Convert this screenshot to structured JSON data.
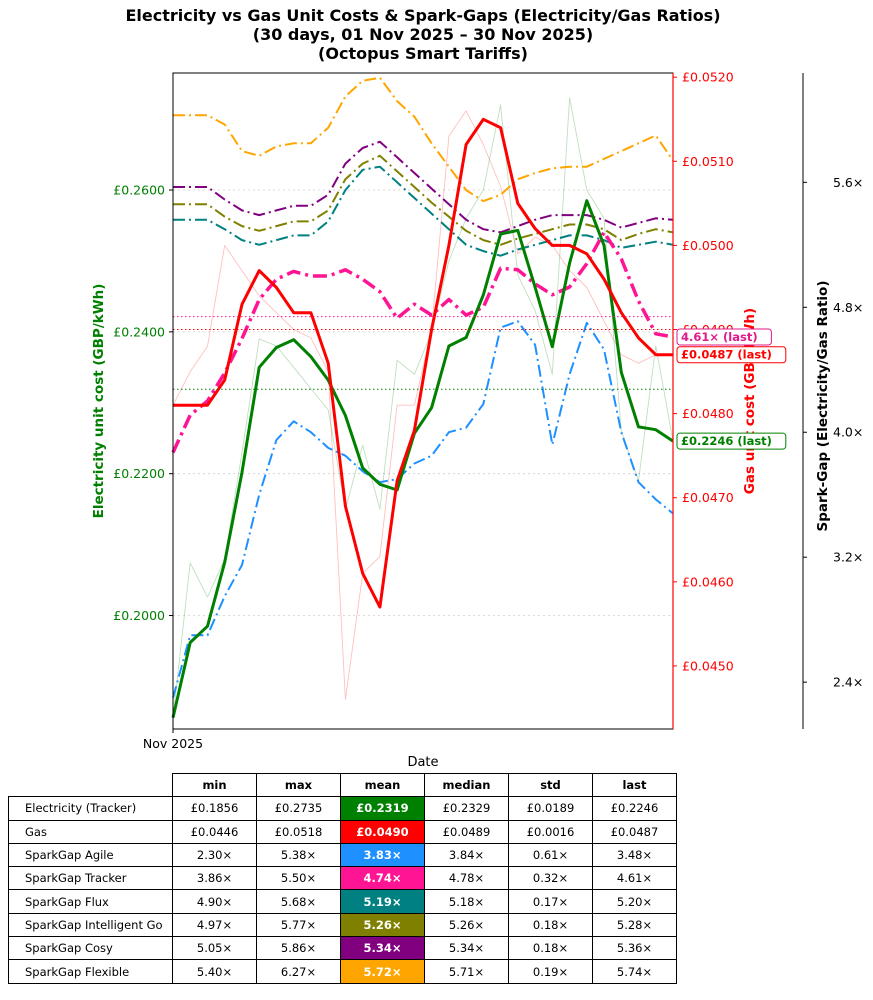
{
  "title": {
    "line1": "Electricity vs Gas Unit Costs & Spark-Gaps (Electricity/Gas Ratios)",
    "line2": "(30 days, 01 Nov 2025 – 30 Nov 2025)",
    "line3": "(Octopus Smart Tariffs)"
  },
  "chart_data": {
    "type": "line",
    "xlabel": "Date",
    "x_tick_label": "Nov 2025",
    "days": 30,
    "axes": {
      "left": {
        "label": "Electricity unit cost (GBP/kWh)",
        "ylim": [
          0.184,
          0.2765
        ],
        "ticks": [
          "£0.2000",
          "£0.2200",
          "£0.2400",
          "£0.2600"
        ],
        "tick_values": [
          0.2,
          0.22,
          0.24,
          0.26
        ],
        "color": "#008000"
      },
      "right": {
        "label": "Gas unit cost (GBP/kWh)",
        "ylim": [
          0.04425,
          0.05205
        ],
        "ticks": [
          "£0.0450",
          "£0.0460",
          "£0.0470",
          "£0.0480",
          "£0.0490",
          "£0.0500",
          "£0.0510",
          "£0.0520"
        ],
        "tick_values": [
          0.045,
          0.046,
          0.047,
          0.048,
          0.049,
          0.05,
          0.051,
          0.052
        ],
        "color": "#ff0000"
      },
      "far_right": {
        "label": "Spark-Gap (Electricity/Gas Ratio)",
        "ylim": [
          2.1,
          6.3
        ],
        "ticks": [
          "2.4×",
          "3.2×",
          "4.0×",
          "4.8×",
          "5.6×"
        ],
        "tick_values": [
          2.4,
          3.2,
          4.0,
          4.8,
          5.6
        ]
      }
    },
    "series": [
      {
        "name": "Electricity (Tracker) raw",
        "axis": "left",
        "color": "#008000",
        "style": "thin",
        "values": [
          0.1856,
          0.2074,
          0.2026,
          0.208,
          0.223,
          0.239,
          0.238,
          0.235,
          0.232,
          0.229,
          0.215,
          0.224,
          0.215,
          0.236,
          0.234,
          0.24,
          0.25,
          0.256,
          0.26,
          0.272,
          0.248,
          0.243,
          0.234,
          0.273,
          0.26,
          0.256,
          0.226,
          0.219,
          0.238,
          0.2246
        ]
      },
      {
        "name": "Electricity (Tracker) smoothed",
        "axis": "left",
        "color": "#008000",
        "style": "solid",
        "values": [
          0.1856,
          0.1962,
          0.1985,
          0.2075,
          0.2202,
          0.235,
          0.2378,
          0.2389,
          0.2365,
          0.2332,
          0.2282,
          0.2208,
          0.2185,
          0.2177,
          0.2257,
          0.2293,
          0.238,
          0.2392,
          0.2452,
          0.2538,
          0.2543,
          0.2463,
          0.2379,
          0.2497,
          0.2585,
          0.2522,
          0.2343,
          0.2266,
          0.2262,
          0.2246
        ]
      },
      {
        "name": "Gas raw",
        "axis": "right",
        "color": "#ff0000",
        "style": "thin",
        "values": [
          0.0481,
          0.0485,
          0.0488,
          0.05,
          0.0497,
          0.0494,
          0.0492,
          0.049,
          0.0489,
          0.0485,
          0.0446,
          0.0461,
          0.0463,
          0.0481,
          0.0481,
          0.049,
          0.0513,
          0.0516,
          0.0512,
          0.0507,
          0.0499,
          0.0501,
          0.05,
          0.0497,
          0.0495,
          0.0491,
          0.0487,
          0.0486,
          0.0487,
          0.0487
        ]
      },
      {
        "name": "Gas smoothed",
        "axis": "right",
        "color": "#ff0000",
        "style": "solid",
        "values": [
          0.0481,
          0.0481,
          0.0481,
          0.0484,
          0.0493,
          0.0497,
          0.0495,
          0.0492,
          0.0492,
          0.0486,
          0.0469,
          0.0461,
          0.0457,
          0.0472,
          0.0478,
          0.049,
          0.05,
          0.0512,
          0.0515,
          0.0514,
          0.0505,
          0.0502,
          0.05,
          0.05,
          0.0499,
          0.0496,
          0.0492,
          0.0489,
          0.0487,
          0.0487
        ]
      },
      {
        "name": "SparkGap Agile",
        "axis": "far_right",
        "color": "#1e90ff",
        "style": "dashdot",
        "values": [
          2.3,
          2.7,
          2.7,
          2.95,
          3.15,
          3.6,
          3.95,
          4.07,
          4.0,
          3.9,
          3.85,
          3.75,
          3.68,
          3.7,
          3.8,
          3.85,
          4.0,
          4.03,
          4.18,
          4.67,
          4.71,
          4.56,
          3.92,
          4.37,
          4.7,
          4.53,
          4.0,
          3.68,
          3.57,
          3.48
        ]
      },
      {
        "name": "SparkGap Tracker",
        "axis": "far_right",
        "color": "#ff1493",
        "style": "dashdot-thick",
        "values": [
          3.87,
          4.11,
          4.2,
          4.38,
          4.6,
          4.85,
          4.98,
          5.03,
          5.0,
          5.0,
          5.04,
          4.98,
          4.9,
          4.73,
          4.82,
          4.75,
          4.85,
          4.75,
          4.8,
          5.05,
          5.04,
          4.95,
          4.88,
          4.93,
          5.08,
          5.28,
          5.11,
          4.84,
          4.63,
          4.61
        ]
      },
      {
        "name": "SparkGap Flux",
        "axis": "far_right",
        "color": "#008080",
        "style": "dashdot",
        "values": [
          5.36,
          5.36,
          5.36,
          5.3,
          5.23,
          5.2,
          5.23,
          5.26,
          5.26,
          5.35,
          5.55,
          5.68,
          5.7,
          5.6,
          5.5,
          5.4,
          5.3,
          5.2,
          5.16,
          5.13,
          5.17,
          5.2,
          5.23,
          5.26,
          5.26,
          5.23,
          5.18,
          5.2,
          5.22,
          5.2
        ]
      },
      {
        "name": "SparkGap Intelligent Go",
        "axis": "far_right",
        "color": "#808000",
        "style": "dashdot",
        "values": [
          5.46,
          5.46,
          5.46,
          5.38,
          5.32,
          5.29,
          5.32,
          5.35,
          5.35,
          5.42,
          5.62,
          5.72,
          5.77,
          5.67,
          5.57,
          5.47,
          5.38,
          5.29,
          5.23,
          5.2,
          5.24,
          5.27,
          5.3,
          5.33,
          5.33,
          5.3,
          5.23,
          5.27,
          5.3,
          5.28
        ]
      },
      {
        "name": "SparkGap Cosy",
        "axis": "far_right",
        "color": "#800080",
        "style": "dashdot",
        "values": [
          5.57,
          5.57,
          5.57,
          5.49,
          5.42,
          5.39,
          5.42,
          5.45,
          5.45,
          5.52,
          5.72,
          5.82,
          5.86,
          5.76,
          5.66,
          5.56,
          5.46,
          5.36,
          5.3,
          5.28,
          5.32,
          5.36,
          5.39,
          5.39,
          5.39,
          5.36,
          5.31,
          5.34,
          5.37,
          5.36
        ]
      },
      {
        "name": "SparkGap Flexible",
        "axis": "far_right",
        "color": "#ffa500",
        "style": "dashdot",
        "values": [
          6.03,
          6.03,
          6.03,
          5.97,
          5.8,
          5.77,
          5.83,
          5.85,
          5.85,
          5.95,
          6.15,
          6.25,
          6.27,
          6.12,
          6.02,
          5.85,
          5.7,
          5.55,
          5.48,
          5.52,
          5.62,
          5.66,
          5.69,
          5.7,
          5.7,
          5.75,
          5.8,
          5.85,
          5.9,
          5.74
        ]
      }
    ],
    "reference_lines": [
      {
        "name": "Electricity mean",
        "axis": "left",
        "value": 0.2319,
        "color": "#008000"
      },
      {
        "name": "Gas mean",
        "axis": "right",
        "value": 0.049,
        "color": "#ff0000"
      },
      {
        "name": "SparkGap Tracker mean",
        "axis": "far_right",
        "value": 4.74,
        "color": "#ff1493"
      }
    ],
    "last_labels": [
      {
        "text": "4.61× (last)",
        "axis": "far_right",
        "value": 4.61,
        "color": "#e0198a"
      },
      {
        "text": "£0.0487 (last)",
        "axis": "right",
        "value": 0.0487,
        "color": "#ff0000"
      },
      {
        "text": "£0.2246 (last)",
        "axis": "left",
        "value": 0.2246,
        "color": "#008000"
      }
    ]
  },
  "table": {
    "headers": [
      "min",
      "max",
      "mean",
      "median",
      "std",
      "last"
    ],
    "rows": [
      {
        "label": "Electricity (Tracker)",
        "cells": [
          "£0.1856",
          "£0.2735",
          "£0.2319",
          "£0.2329",
          "£0.0189",
          "£0.2246"
        ],
        "mean_color": "#008000"
      },
      {
        "label": "Gas",
        "cells": [
          "£0.0446",
          "£0.0518",
          "£0.0490",
          "£0.0489",
          "£0.0016",
          "£0.0487"
        ],
        "mean_color": "#ff0000"
      },
      {
        "label": "SparkGap Agile",
        "cells": [
          "2.30×",
          "5.38×",
          "3.83×",
          "3.84×",
          "0.61×",
          "3.48×"
        ],
        "mean_color": "#1e90ff"
      },
      {
        "label": "SparkGap Tracker",
        "cells": [
          "3.86×",
          "5.50×",
          "4.74×",
          "4.78×",
          "0.32×",
          "4.61×"
        ],
        "mean_color": "#ff1493"
      },
      {
        "label": "SparkGap Flux",
        "cells": [
          "4.90×",
          "5.68×",
          "5.19×",
          "5.18×",
          "0.17×",
          "5.20×"
        ],
        "mean_color": "#008080"
      },
      {
        "label": "SparkGap Intelligent Go",
        "cells": [
          "4.97×",
          "5.77×",
          "5.26×",
          "5.26×",
          "0.18×",
          "5.28×"
        ],
        "mean_color": "#808000"
      },
      {
        "label": "SparkGap Cosy",
        "cells": [
          "5.05×",
          "5.86×",
          "5.34×",
          "5.34×",
          "0.18×",
          "5.36×"
        ],
        "mean_color": "#800080"
      },
      {
        "label": "SparkGap Flexible",
        "cells": [
          "5.40×",
          "6.27×",
          "5.72×",
          "5.71×",
          "0.19×",
          "5.74×"
        ],
        "mean_color": "#ffa500"
      }
    ]
  }
}
